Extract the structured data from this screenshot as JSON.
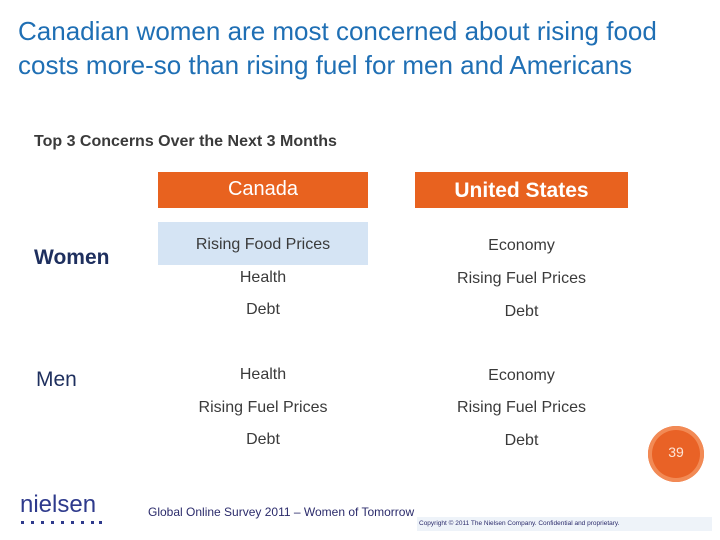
{
  "title": "Canadian women are most concerned about rising food costs more-so than rising fuel for men and Americans",
  "subtitle": "Top 3 Concerns Over the Next 3 Months",
  "columns": {
    "canada": "Canada",
    "us": "United States"
  },
  "colors": {
    "accent": "#e8621f",
    "title": "#1f6fb4",
    "highlight": "#d5e4f4"
  },
  "rows": {
    "women": {
      "label": "Women",
      "canada": [
        "Rising Food Prices",
        "Health",
        "Debt"
      ],
      "us": [
        "Economy",
        "Rising Fuel Prices",
        "Debt"
      ]
    },
    "men": {
      "label": "Men",
      "canada": [
        "Health",
        "Rising Fuel Prices",
        "Debt"
      ],
      "us": [
        "Economy",
        "Rising Fuel Prices",
        "Debt"
      ]
    }
  },
  "page_number": "39",
  "footer": "Global Online Survey 2011 – Women of Tomorrow",
  "copyright": "Copyright © 2011 The Nielsen Company. Confidential and proprietary.",
  "logo_text": "nielsen"
}
